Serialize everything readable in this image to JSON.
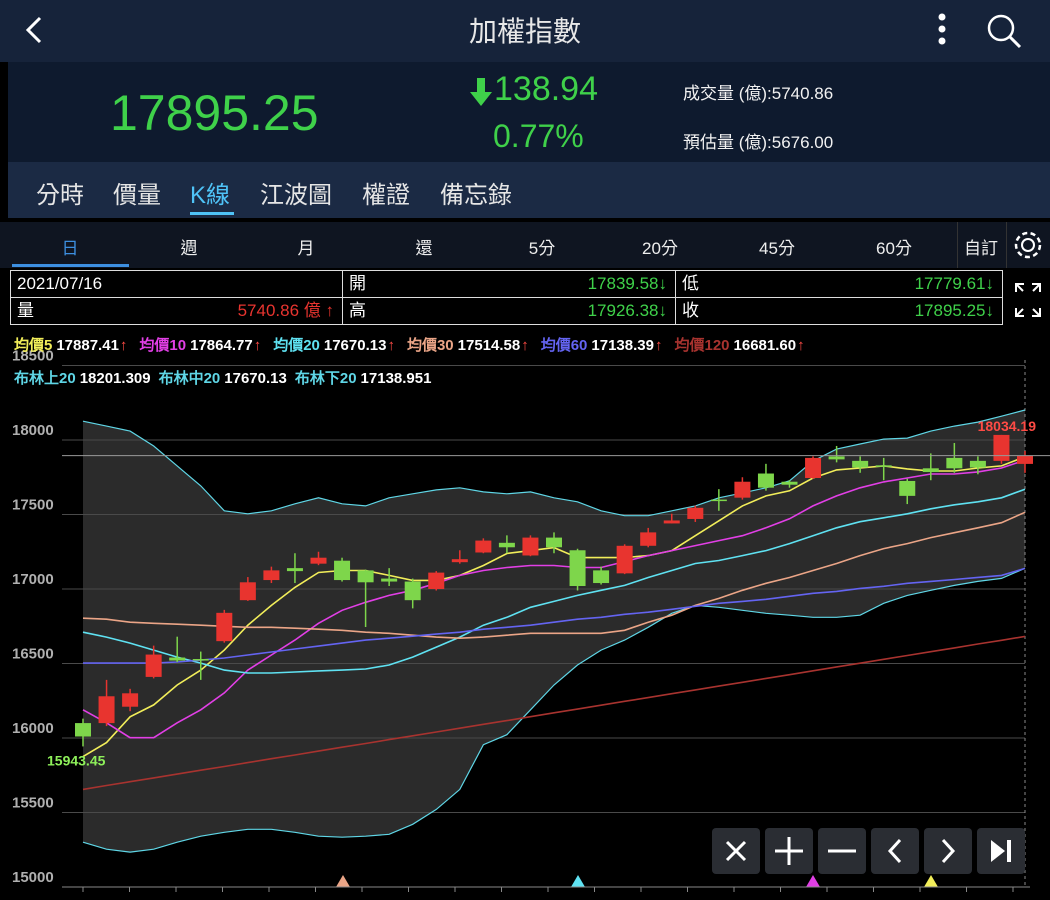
{
  "header": {
    "title": "加權指數"
  },
  "quote": {
    "price": "17895.25",
    "change": "138.94",
    "change_pct": "0.77%",
    "volume": "成交量 (億):5740.86",
    "estimate": "預估量 (億):5676.00"
  },
  "tabs": {
    "items": [
      "分時",
      "價量",
      "K線",
      "江波圖",
      "權證",
      "備忘錄"
    ],
    "active": 2
  },
  "periods": {
    "items": [
      "日",
      "週",
      "月",
      "還",
      "5分",
      "20分",
      "45分",
      "60分"
    ],
    "active": 0,
    "custom": "自訂"
  },
  "info": {
    "date": "2021/07/16",
    "volume": {
      "label": "量",
      "value": "5740.86 億 ↑"
    },
    "open": {
      "label": "開",
      "value": "17839.58↓"
    },
    "high": {
      "label": "高",
      "value": "17926.38↓"
    },
    "low": {
      "label": "低",
      "value": "17779.61↓"
    },
    "close": {
      "label": "收",
      "value": "17895.25↓"
    }
  },
  "chart_data": {
    "type": "candlestick",
    "ylim": [
      15000,
      18500
    ],
    "yticks": [
      15000,
      15500,
      16000,
      16500,
      17000,
      17500,
      18000,
      18500
    ],
    "grid": true,
    "up_color": "#e8342f",
    "down_color": "#7ed64b",
    "open": [
      16100,
      16100,
      16210,
      16410,
      16540,
      16530,
      16650,
      16925,
      17060,
      17140,
      17170,
      17190,
      17125,
      17070,
      17050,
      17000,
      17180,
      17245,
      17310,
      17225,
      17345,
      17260,
      17125,
      17105,
      17290,
      17440,
      17470,
      17600,
      17613,
      17775,
      17720,
      17745,
      17890,
      17860,
      17830,
      17725,
      17810,
      17880,
      17860,
      17860,
      17839.58
    ],
    "high": [
      16130,
      16390,
      16330,
      16620,
      16680,
      16580,
      16860,
      17080,
      17150,
      17240,
      17250,
      17210,
      17130,
      17140,
      17070,
      17120,
      17260,
      17340,
      17360,
      17360,
      17380,
      17270,
      17150,
      17300,
      17410,
      17505,
      17560,
      17670,
      17750,
      17840,
      17730,
      17890,
      17960,
      17890,
      17880,
      17740,
      17910,
      17980,
      17890,
      18034.19,
      17926.38
    ],
    "low": [
      15943.45,
      16080,
      16180,
      16400,
      16510,
      16390,
      16640,
      16920,
      17040,
      17040,
      17160,
      17050,
      16745,
      17020,
      16870,
      16990,
      17170,
      17240,
      17240,
      17220,
      17240,
      16990,
      17030,
      17100,
      17280,
      17440,
      17450,
      17525,
      17600,
      17660,
      17680,
      17740,
      17850,
      17780,
      17730,
      17570,
      17730,
      17780,
      17770,
      17840,
      17779.61
    ],
    "close": [
      16010,
      16280,
      16300,
      16560,
      16520,
      16520,
      16840,
      17045,
      17125,
      17120,
      17210,
      17060,
      17045,
      17050,
      16925,
      17110,
      17200,
      17325,
      17280,
      17345,
      17280,
      17020,
      17040,
      17290,
      17380,
      17460,
      17545,
      17590,
      17720,
      17680,
      17700,
      17880,
      17870,
      17815,
      17820,
      17625,
      17785,
      17810,
      17815,
      18034.19,
      17895.25
    ],
    "high_label": "18034.19",
    "low_label": "15943.45",
    "series": [
      {
        "name": "均價5",
        "value_label": "17887.41",
        "arrow": "↑",
        "color": "#f2ee5a",
        "values": [
          15875,
          15969,
          16142,
          16222,
          16356,
          16456,
          16590,
          16757,
          16890,
          17011,
          17111,
          17124,
          17124,
          17091,
          17058,
          17058,
          17091,
          17158,
          17238,
          17258,
          17278,
          17211,
          17211,
          17211,
          17224,
          17258,
          17358,
          17458,
          17558,
          17625,
          17659,
          17745,
          17799,
          17812,
          17826,
          17806,
          17792,
          17792,
          17812,
          17826,
          17887.41
        ]
      },
      {
        "name": "均價10",
        "value_label": "17864.77",
        "arrow": "↑",
        "color": "#e23fe6",
        "values": [
          16189,
          16102,
          16002,
          16002,
          16102,
          16189,
          16303,
          16456,
          16557,
          16657,
          16770,
          16857,
          16911,
          16957,
          16991,
          17038,
          17091,
          17124,
          17144,
          17158,
          17158,
          17144,
          17144,
          17184,
          17224,
          17258,
          17291,
          17325,
          17358,
          17411,
          17471,
          17558,
          17625,
          17679,
          17719,
          17745,
          17772,
          17772,
          17786,
          17812,
          17864.77
        ]
      },
      {
        "name": "均價20",
        "value_label": "17670.13",
        "arrow": "↑",
        "color": "#5fe2f2",
        "values": [
          16710,
          16677,
          16637,
          16590,
          16543,
          16503,
          16456,
          16436,
          16436,
          16443,
          16450,
          16456,
          16463,
          16490,
          16543,
          16610,
          16677,
          16757,
          16810,
          16877,
          16917,
          16957,
          16991,
          17024,
          17077,
          17124,
          17171,
          17191,
          17224,
          17258,
          17305,
          17358,
          17411,
          17452,
          17478,
          17505,
          17538,
          17565,
          17585,
          17612,
          17670.13
        ]
      },
      {
        "name": "均價30",
        "value_label": "17514.58",
        "arrow": "↑",
        "color": "#eba587",
        "values": [
          16804,
          16797,
          16777,
          16770,
          16764,
          16757,
          16750,
          16743,
          16743,
          16737,
          16730,
          16723,
          16710,
          16703,
          16690,
          16677,
          16670,
          16677,
          16690,
          16703,
          16703,
          16703,
          16703,
          16723,
          16777,
          16824,
          16890,
          16937,
          16991,
          17038,
          17077,
          17124,
          17171,
          17224,
          17271,
          17305,
          17345,
          17378,
          17411,
          17445,
          17514.58
        ]
      },
      {
        "name": "均價60",
        "value_label": "17138.39",
        "arrow": "↑",
        "color": "#6464f2",
        "values": [
          16503,
          16503,
          16503,
          16503,
          16510,
          16523,
          16537,
          16557,
          16577,
          16597,
          16617,
          16637,
          16657,
          16670,
          16683,
          16697,
          16710,
          16730,
          16743,
          16757,
          16777,
          16797,
          16810,
          16830,
          16844,
          16864,
          16884,
          16904,
          16917,
          16931,
          16951,
          16971,
          16984,
          17004,
          17018,
          17038,
          17051,
          17064,
          17078,
          17091,
          17138.39
        ]
      },
      {
        "name": "均價120",
        "value_label": "16681.60",
        "arrow": "↑",
        "color": "#a8332f",
        "values": [
          15655,
          15681,
          15707,
          15732,
          15758,
          15784,
          15809,
          15835,
          15861,
          15886,
          15912,
          15938,
          15963,
          15989,
          16015,
          16040,
          16066,
          16092,
          16117,
          16143,
          16169,
          16194,
          16220,
          16246,
          16271,
          16297,
          16323,
          16348,
          16374,
          16400,
          16425,
          16451,
          16477,
          16502,
          16528,
          16554,
          16579,
          16605,
          16631,
          16656,
          16681.6
        ]
      }
    ],
    "bollinger": {
      "color": "#5fd6e6",
      "fill": "#2b2b2b",
      "upper": {
        "name": "布林上20",
        "value_label": "18201.309",
        "values": [
          18126,
          18093,
          18060,
          17960,
          17826,
          17692,
          17525,
          17505,
          17525,
          17572,
          17612,
          17572,
          17558,
          17612,
          17639,
          17665,
          17679,
          17652,
          17639,
          17652,
          17612,
          17585,
          17525,
          17492,
          17492,
          17525,
          17558,
          17612,
          17645,
          17679,
          17726,
          17859,
          17939,
          17973,
          18006,
          18013,
          18060,
          18093,
          18120,
          18160,
          18201.309
        ]
      },
      "middle": {
        "name": "布林中20",
        "value_label": "17670.13"
      },
      "lower": {
        "name": "布林下20",
        "value_label": "17138.951",
        "values": [
          15301,
          15254,
          15234,
          15254,
          15301,
          15341,
          15367,
          15387,
          15387,
          15367,
          15341,
          15334,
          15341,
          15354,
          15421,
          15521,
          15655,
          15955,
          16022,
          16189,
          16356,
          16490,
          16590,
          16657,
          16743,
          16837,
          16890,
          16877,
          16857,
          16837,
          16824,
          16810,
          16810,
          16824,
          16904,
          16957,
          16991,
          17024,
          17051,
          17071,
          17138.951
        ]
      }
    }
  }
}
